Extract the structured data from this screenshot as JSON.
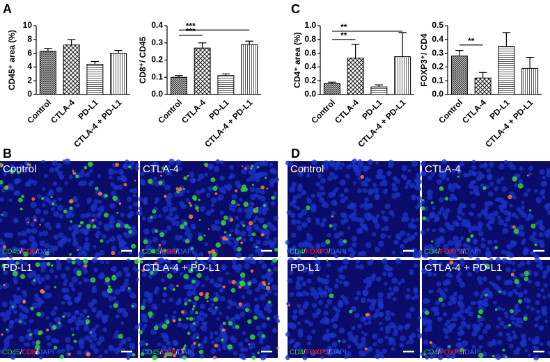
{
  "panels": [
    "A",
    "B",
    "C",
    "D"
  ],
  "chart_data": [
    {
      "type": "bar",
      "y_label": "CD45⁺ area (%)",
      "categories": [
        "Control",
        "CTLA-4",
        "PD-L1",
        "CTLA-4 + PD-L1"
      ],
      "values": [
        6.3,
        7.2,
        4.4,
        6.0
      ],
      "errors": [
        0.4,
        0.8,
        0.4,
        0.4
      ],
      "ylim": [
        0,
        10
      ],
      "yticks": [
        0,
        2,
        4,
        6,
        8,
        10
      ],
      "annotations": []
    },
    {
      "type": "bar",
      "y_label": "CD8⁺/ CD45",
      "categories": [
        "Control",
        "CTLA-4",
        "PD-L1",
        "CTLA-4 + PD-L1"
      ],
      "values": [
        0.1,
        0.27,
        0.11,
        0.29
      ],
      "errors": [
        0.01,
        0.03,
        0.01,
        0.02
      ],
      "ylim": [
        0,
        0.4
      ],
      "yticks": [
        {
          "value": 0,
          "label": "0.0"
        },
        0.1,
        0.2,
        0.3,
        0.4
      ],
      "annotations": [
        {
          "text": "***",
          "between": [
            "Control",
            "CTLA-4"
          ],
          "y": 0.345
        },
        {
          "text": "***",
          "between": [
            "Control",
            "CTLA-4 + PD-L1"
          ],
          "y": 0.375
        }
      ]
    },
    {
      "type": "bar",
      "y_label": "CD4⁺ area (%)",
      "categories": [
        "Control",
        "CTLA-4",
        "PD-L1",
        "CTLA-4 + PD-L1"
      ],
      "values": [
        0.16,
        0.53,
        0.11,
        0.55
      ],
      "errors": [
        0.02,
        0.2,
        0.03,
        0.35
      ],
      "ylim": [
        0,
        1.0
      ],
      "yticks": [
        {
          "value": 0,
          "label": "0.0"
        },
        0.2,
        0.4,
        0.6,
        0.8,
        {
          "value": 1,
          "label": "1.0"
        }
      ],
      "annotations": [
        {
          "text": "**",
          "between": [
            "Control",
            "CTLA-4"
          ],
          "y": 0.8
        },
        {
          "text": "**",
          "between": [
            "Control",
            "CTLA-4 + PD-L1"
          ],
          "y": 0.92
        }
      ]
    },
    {
      "type": "bar",
      "y_label": "FOXP3⁺/ CD4",
      "categories": [
        "Control",
        "CTLA-4",
        "PD-L1",
        "CTLA-4 + PD-L1"
      ],
      "values": [
        0.28,
        0.12,
        0.35,
        0.19
      ],
      "errors": [
        0.04,
        0.04,
        0.1,
        0.08
      ],
      "ylim": [
        0,
        0.5
      ],
      "yticks": [
        {
          "value": 0,
          "label": "0.0"
        },
        0.1,
        0.2,
        0.3,
        0.4,
        0.5
      ],
      "annotations": [
        {
          "text": "**",
          "between": [
            "Control",
            "CTLA-4"
          ],
          "y": 0.36
        }
      ]
    }
  ],
  "images": {
    "B": {
      "labels": [
        "Control",
        "CTLA-4",
        "PD-L1",
        "CTLA-4 + PD-L1"
      ],
      "separator": "/",
      "stains": [
        {
          "name": "CD45",
          "color": "#2fd52f"
        },
        {
          "name": "CD8",
          "color": "#ff2a2a"
        },
        {
          "name": "DAPI",
          "color": "#3f6bff"
        }
      ]
    },
    "D": {
      "labels": [
        "Control",
        "CTLA-4",
        "PD-L1",
        "CTLA-4 + PD-L1"
      ],
      "separator": "/",
      "stains": [
        {
          "name": "CD4",
          "color": "#2fd52f"
        },
        {
          "name": "FOXP3",
          "color": "#ff2a2a"
        },
        {
          "name": "DAPI",
          "color": "#3f6bff"
        }
      ]
    }
  }
}
